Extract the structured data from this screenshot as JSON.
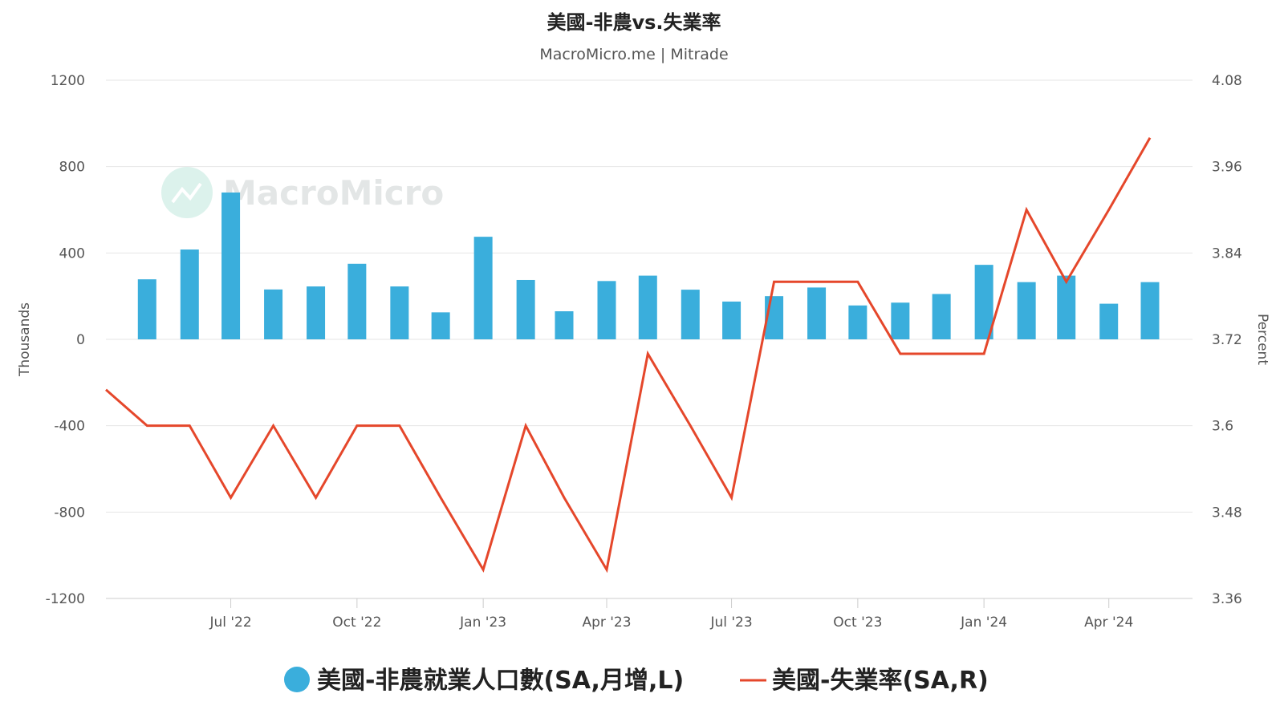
{
  "header": {
    "title": "美國-非農vs.失業率",
    "subtitle": "MacroMicro.me | Mitrade"
  },
  "watermark": {
    "text": "MacroMicro"
  },
  "colors": {
    "bars": "#3aaedc",
    "line": "#e5472b",
    "grid": "#e6e6e6",
    "axis": "#cccccc"
  },
  "chart_data": {
    "type": "bar+line",
    "title": "美國-非農vs.失業率",
    "subtitle": "MacroMicro.me | Mitrade",
    "x_tick_labels": [
      "Jul '22",
      "Oct '22",
      "Jan '23",
      "Apr '23",
      "Jul '23",
      "Oct '23",
      "Jan '24",
      "Apr '24"
    ],
    "left_axis": {
      "label": "Thousands",
      "range": [
        -1200,
        1200
      ],
      "ticks": [
        1200,
        800,
        400,
        0,
        -400,
        -800,
        -1200
      ]
    },
    "right_axis": {
      "label": "Percent",
      "range": [
        3.36,
        4.08
      ],
      "ticks": [
        "4.08",
        "3.96",
        "3.84",
        "3.72",
        "3.6",
        "3.48",
        "3.36"
      ]
    },
    "grid": true,
    "legend_position": "bottom",
    "series": [
      {
        "name": "美國-非農就業人口數(SA,月增,L)",
        "type": "bar",
        "axis": "left",
        "x": [
          "2022-05-01",
          "2022-06-01",
          "2022-07-01",
          "2022-08-01",
          "2022-09-01",
          "2022-10-01",
          "2022-11-01",
          "2022-12-01",
          "2023-01-01",
          "2023-02-01",
          "2023-03-01",
          "2023-04-01",
          "2023-05-01",
          "2023-06-01",
          "2023-07-01",
          "2023-08-01",
          "2023-09-01",
          "2023-10-01",
          "2023-11-01",
          "2023-12-01",
          "2024-01-01",
          "2024-02-01",
          "2024-03-01",
          "2024-04-01",
          "2024-05-01"
        ],
        "values": [
          278,
          416,
          680,
          231,
          245,
          350,
          245,
          125,
          475,
          275,
          130,
          270,
          295,
          230,
          175,
          200,
          240,
          157,
          170,
          210,
          345,
          265,
          295,
          165,
          265
        ]
      },
      {
        "name": "美國-失業率(SA,R)",
        "type": "line",
        "axis": "right",
        "x": [
          "2022-04-01",
          "2022-05-01",
          "2022-06-01",
          "2022-07-01",
          "2022-08-01",
          "2022-09-01",
          "2022-10-01",
          "2022-11-01",
          "2022-12-01",
          "2023-01-01",
          "2023-02-01",
          "2023-03-01",
          "2023-04-01",
          "2023-05-01",
          "2023-06-01",
          "2023-07-01",
          "2023-08-01",
          "2023-09-01",
          "2023-10-01",
          "2023-11-01",
          "2023-12-01",
          "2024-01-01",
          "2024-02-01",
          "2024-03-01",
          "2024-04-01",
          "2024-05-01"
        ],
        "values": [
          3.65,
          3.6,
          3.6,
          3.5,
          3.6,
          3.5,
          3.6,
          3.6,
          3.5,
          3.4,
          3.6,
          3.5,
          3.4,
          3.7,
          3.6,
          3.5,
          3.8,
          3.8,
          3.8,
          3.7,
          3.7,
          3.7,
          3.9,
          3.8,
          3.9,
          4.0
        ]
      }
    ]
  }
}
